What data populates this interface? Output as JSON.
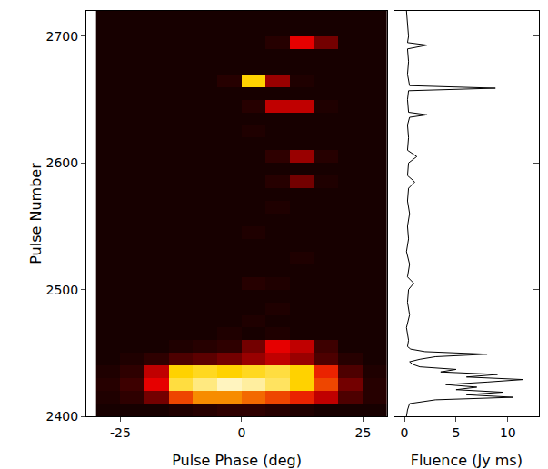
{
  "chart_data": [
    {
      "type": "heatmap",
      "xlabel": "Pulse Phase (deg)",
      "ylabel": "Pulse Number",
      "x": [
        -27.5,
        -22.5,
        -17.5,
        -12.5,
        -7.5,
        -2.5,
        2.5,
        7.5,
        12.5,
        17.5,
        22.5,
        27.5
      ],
      "y": [
        2405,
        2415,
        2425,
        2435,
        2445,
        2455,
        2465,
        2475,
        2485,
        2495,
        2505,
        2515,
        2525,
        2535,
        2545,
        2555,
        2565,
        2575,
        2585,
        2595,
        2605,
        2615,
        2625,
        2635,
        2645,
        2655,
        2665,
        2675,
        2685,
        2695,
        2705,
        2715
      ],
      "z": [
        [
          0.3,
          0.3,
          0.3,
          0.4,
          0.5,
          0.6,
          0.6,
          0.5,
          0.4,
          0.3,
          0.3,
          0.3
        ],
        [
          0.4,
          0.6,
          1.5,
          4,
          5,
          5,
          4.5,
          4,
          3.5,
          2.5,
          1,
          0.5
        ],
        [
          0.5,
          0.8,
          3,
          7,
          8,
          9,
          8.5,
          7.5,
          6,
          4,
          1.5,
          0.5
        ],
        [
          0.4,
          0.6,
          2.5,
          6,
          6.5,
          6,
          6.5,
          7,
          6,
          3.5,
          1,
          0.4
        ],
        [
          0.3,
          0.4,
          0.6,
          1,
          1.2,
          1.5,
          2,
          2.5,
          2,
          1,
          0.5,
          0.3
        ],
        [
          0.3,
          0.3,
          0.3,
          0.4,
          0.5,
          0.6,
          1.5,
          3,
          2.5,
          0.8,
          0.3,
          0.3
        ],
        [
          0.3,
          0.3,
          0.3,
          0.3,
          0.3,
          0.4,
          0.3,
          0.4,
          0.3,
          0.3,
          0.3,
          0.3
        ],
        [
          0.3,
          0.3,
          0.3,
          0.3,
          0.3,
          0.3,
          0.4,
          0.3,
          0.3,
          0.3,
          0.3,
          0.3
        ],
        [
          0.3,
          0.3,
          0.3,
          0.3,
          0.3,
          0.3,
          0.3,
          0.4,
          0.3,
          0.3,
          0.3,
          0.3
        ],
        [
          0.3,
          0.3,
          0.3,
          0.3,
          0.3,
          0.3,
          0.3,
          0.3,
          0.3,
          0.3,
          0.3,
          0.3
        ],
        [
          0.3,
          0.3,
          0.3,
          0.3,
          0.3,
          0.3,
          0.5,
          0.4,
          0.3,
          0.3,
          0.3,
          0.3
        ],
        [
          0.3,
          0.3,
          0.3,
          0.3,
          0.3,
          0.3,
          0.3,
          0.3,
          0.3,
          0.3,
          0.3,
          0.3
        ],
        [
          0.3,
          0.3,
          0.3,
          0.3,
          0.3,
          0.3,
          0.3,
          0.3,
          0.4,
          0.3,
          0.3,
          0.3
        ],
        [
          0.3,
          0.3,
          0.3,
          0.3,
          0.3,
          0.3,
          0.3,
          0.3,
          0.3,
          0.3,
          0.3,
          0.3
        ],
        [
          0.3,
          0.3,
          0.3,
          0.3,
          0.3,
          0.3,
          0.4,
          0.3,
          0.3,
          0.3,
          0.3,
          0.3
        ],
        [
          0.3,
          0.3,
          0.3,
          0.3,
          0.3,
          0.3,
          0.3,
          0.3,
          0.3,
          0.3,
          0.3,
          0.3
        ],
        [
          0.3,
          0.3,
          0.3,
          0.3,
          0.3,
          0.3,
          0.3,
          0.4,
          0.3,
          0.3,
          0.3,
          0.3
        ],
        [
          0.3,
          0.3,
          0.3,
          0.3,
          0.3,
          0.3,
          0.3,
          0.3,
          0.3,
          0.3,
          0.3,
          0.3
        ],
        [
          0.3,
          0.3,
          0.3,
          0.3,
          0.3,
          0.3,
          0.3,
          0.5,
          1.5,
          0.4,
          0.3,
          0.3
        ],
        [
          0.3,
          0.3,
          0.3,
          0.3,
          0.3,
          0.3,
          0.3,
          0.3,
          0.3,
          0.3,
          0.3,
          0.3
        ],
        [
          0.3,
          0.3,
          0.3,
          0.3,
          0.3,
          0.3,
          0.3,
          0.6,
          2,
          0.5,
          0.3,
          0.3
        ],
        [
          0.3,
          0.3,
          0.3,
          0.3,
          0.3,
          0.3,
          0.3,
          0.3,
          0.3,
          0.3,
          0.3,
          0.3
        ],
        [
          0.3,
          0.3,
          0.3,
          0.3,
          0.3,
          0.3,
          0.4,
          0.3,
          0.3,
          0.3,
          0.3,
          0.3
        ],
        [
          0.3,
          0.3,
          0.3,
          0.3,
          0.3,
          0.3,
          0.3,
          0.3,
          0.3,
          0.3,
          0.3,
          0.3
        ],
        [
          0.3,
          0.3,
          0.3,
          0.3,
          0.3,
          0.3,
          0.5,
          2.5,
          2.5,
          0.4,
          0.3,
          0.3
        ],
        [
          0.3,
          0.3,
          0.3,
          0.3,
          0.3,
          0.3,
          0.3,
          0.3,
          0.3,
          0.3,
          0.3,
          0.3
        ],
        [
          0.3,
          0.3,
          0.3,
          0.3,
          0.3,
          0.5,
          6,
          2,
          0.4,
          0.3,
          0.3,
          0.3
        ],
        [
          0.3,
          0.3,
          0.3,
          0.3,
          0.3,
          0.3,
          0.3,
          0.3,
          0.3,
          0.3,
          0.3,
          0.3
        ],
        [
          0.3,
          0.3,
          0.3,
          0.3,
          0.3,
          0.3,
          0.3,
          0.3,
          0.3,
          0.3,
          0.3,
          0.3
        ],
        [
          0.3,
          0.3,
          0.3,
          0.3,
          0.3,
          0.3,
          0.3,
          0.5,
          3,
          1.5,
          0.3,
          0.3
        ],
        [
          0.3,
          0.3,
          0.3,
          0.3,
          0.3,
          0.3,
          0.3,
          0.3,
          0.3,
          0.3,
          0.3,
          0.3
        ],
        [
          0.3,
          0.3,
          0.3,
          0.3,
          0.3,
          0.3,
          0.3,
          0.3,
          0.3,
          0.3,
          0.3,
          0.3
        ]
      ],
      "zlim": [
        0,
        10
      ],
      "xlim": [
        -32,
        30
      ],
      "xticks": [
        -25,
        0,
        25
      ],
      "ylim": [
        2400,
        2720
      ],
      "yticks": [
        2400,
        2500,
        2600,
        2700
      ],
      "grid": false
    },
    {
      "type": "line",
      "xlabel": "Fluence (Jy ms)",
      "x": [
        0.2,
        0.3,
        0.5,
        3,
        10.5,
        6,
        9.5,
        5,
        7,
        4,
        8,
        11.5,
        6,
        9,
        3.5,
        5,
        1.5,
        0.8,
        0.5,
        1.5,
        3,
        8,
        2,
        0.6,
        0.3,
        0.4,
        0.2,
        0.5,
        0.3,
        0.4,
        0.9,
        0.3,
        0.5,
        0.2,
        0.4,
        0.3,
        0.5,
        0.3,
        0.4,
        1.0,
        0.3,
        0.4,
        1.2,
        0.3,
        0.4,
        0.3,
        0.5,
        2.2,
        0.4,
        0.3,
        0.4,
        8.8,
        0.5,
        0.3,
        0.4,
        0.3,
        2.2,
        0.3,
        0.4,
        0.3,
        0.2
      ],
      "y": [
        2400,
        2405,
        2410,
        2413,
        2415,
        2417,
        2419,
        2421,
        2423,
        2425,
        2427,
        2429,
        2431,
        2433,
        2435,
        2437,
        2439,
        2441,
        2443,
        2445,
        2447,
        2449,
        2451,
        2453,
        2455,
        2460,
        2470,
        2480,
        2490,
        2500,
        2505,
        2510,
        2520,
        2530,
        2540,
        2550,
        2560,
        2570,
        2580,
        2585,
        2590,
        2600,
        2605,
        2610,
        2620,
        2630,
        2636,
        2638,
        2640,
        2650,
        2657,
        2659,
        2661,
        2670,
        2680,
        2690,
        2693,
        2695,
        2700,
        2710,
        2720
      ],
      "color": "#000000",
      "xlim": [
        -1,
        13
      ],
      "xticks": [
        0,
        5,
        10
      ],
      "ylim": [
        2400,
        2720
      ],
      "yticks": [
        2400,
        2500,
        2600,
        2700
      ],
      "tick_labels": "x",
      "grid": false
    }
  ]
}
